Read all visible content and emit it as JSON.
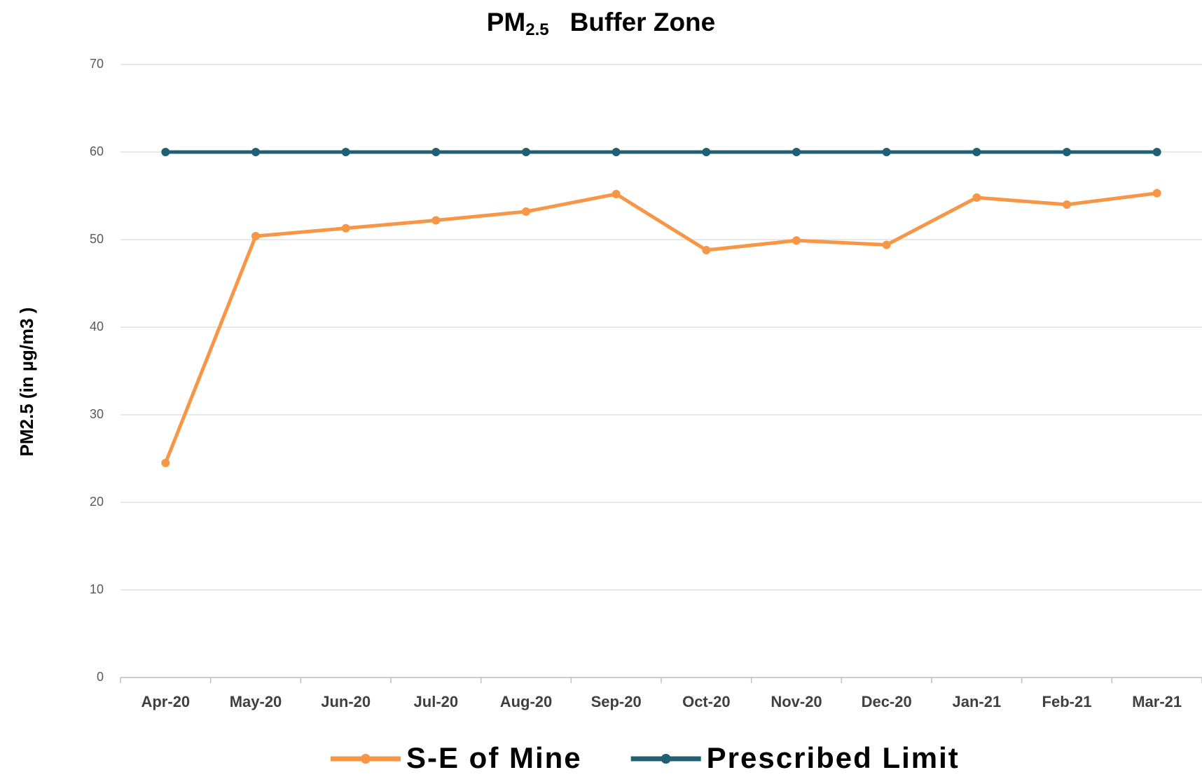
{
  "chart_data": {
    "type": "line",
    "title": [
      "PM",
      "2.5",
      "Buffer Zone"
    ],
    "y_label": "PM2.5 (in µg/m3 )",
    "categories": [
      "Apr-20",
      "May-20",
      "Jun-20",
      "Jul-20",
      "Aug-20",
      "Sep-20",
      "Oct-20",
      "Nov-20",
      "Dec-20",
      "Jan-21",
      "Feb-21",
      "Mar-21"
    ],
    "series": [
      {
        "name": "S-E of Mine",
        "color": "#f79646",
        "values": [
          24.5,
          50.4,
          51.3,
          52.2,
          53.2,
          55.2,
          48.8,
          49.9,
          49.4,
          54.8,
          54.0,
          55.3
        ]
      },
      {
        "name": "Prescribed Limit",
        "color": "#215f73",
        "values": [
          60,
          60,
          60,
          60,
          60,
          60,
          60,
          60,
          60,
          60,
          60,
          60
        ]
      }
    ],
    "ylim": [
      0,
      70
    ],
    "yticks": [
      0,
      10,
      20,
      30,
      40,
      50,
      60,
      70
    ],
    "grid": true,
    "legend": "bottom"
  }
}
